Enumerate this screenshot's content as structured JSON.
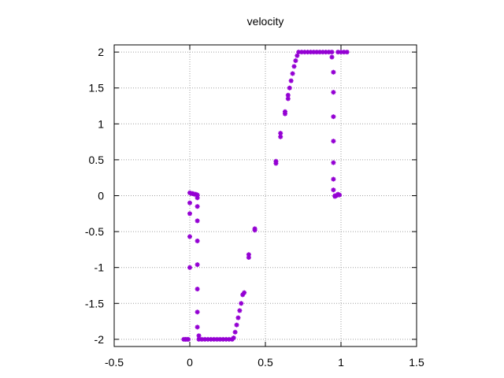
{
  "chart_data": {
    "type": "scatter",
    "title": "velocity",
    "xlabel": "",
    "ylabel": "",
    "xlim": [
      -0.5,
      1.5
    ],
    "ylim": [
      -2.1,
      2.1
    ],
    "x_ticks": [
      "-0.5",
      "0",
      "0.5",
      "1",
      "1.5"
    ],
    "y_ticks": [
      "2",
      "1.5",
      "1",
      "0.5",
      "0",
      "-0.5",
      "-1",
      "-1.5",
      "-2"
    ],
    "grid": true,
    "marker_color": "#9400D3",
    "series": [
      {
        "points": [
          [
            -0.04,
            -2.0
          ],
          [
            -0.03,
            -2.0
          ],
          [
            -0.02,
            -2.0
          ],
          [
            -0.01,
            -2.0
          ],
          [
            0.0,
            0.04
          ],
          [
            0.0,
            -0.1
          ],
          [
            0.0,
            -0.25
          ],
          [
            0.0,
            -0.57
          ],
          [
            0.0,
            -1.0
          ],
          [
            0.01,
            0.03
          ],
          [
            0.02,
            0.03
          ],
          [
            0.03,
            0.02
          ],
          [
            0.04,
            0.02
          ],
          [
            0.05,
            0.01
          ],
          [
            0.05,
            -0.03
          ],
          [
            0.05,
            -0.15
          ],
          [
            0.05,
            -0.35
          ],
          [
            0.05,
            -0.63
          ],
          [
            0.05,
            -0.96
          ],
          [
            0.05,
            -1.3
          ],
          [
            0.05,
            -1.62
          ],
          [
            0.05,
            -1.83
          ],
          [
            0.06,
            -1.95
          ],
          [
            0.06,
            -2.0
          ],
          [
            0.08,
            -2.0
          ],
          [
            0.1,
            -2.0
          ],
          [
            0.12,
            -2.0
          ],
          [
            0.14,
            -2.0
          ],
          [
            0.16,
            -2.0
          ],
          [
            0.18,
            -2.0
          ],
          [
            0.2,
            -2.0
          ],
          [
            0.22,
            -2.0
          ],
          [
            0.24,
            -2.0
          ],
          [
            0.26,
            -2.0
          ],
          [
            0.28,
            -2.0
          ],
          [
            0.29,
            -1.98
          ],
          [
            0.3,
            -1.9
          ],
          [
            0.31,
            -1.8
          ],
          [
            0.32,
            -1.7
          ],
          [
            0.33,
            -1.6
          ],
          [
            0.34,
            -1.5
          ],
          [
            0.35,
            -1.38
          ],
          [
            0.36,
            -1.35
          ],
          [
            0.39,
            -0.86
          ],
          [
            0.39,
            -0.82
          ],
          [
            0.43,
            -0.46
          ],
          [
            0.43,
            -0.48
          ],
          [
            0.57,
            0.45
          ],
          [
            0.57,
            0.48
          ],
          [
            0.6,
            0.82
          ],
          [
            0.6,
            0.87
          ],
          [
            0.63,
            1.14
          ],
          [
            0.63,
            1.17
          ],
          [
            0.65,
            1.35
          ],
          [
            0.65,
            1.4
          ],
          [
            0.66,
            1.5
          ],
          [
            0.67,
            1.6
          ],
          [
            0.68,
            1.7
          ],
          [
            0.69,
            1.8
          ],
          [
            0.7,
            1.88
          ],
          [
            0.71,
            1.95
          ],
          [
            0.72,
            2.0
          ],
          [
            0.74,
            2.0
          ],
          [
            0.76,
            2.0
          ],
          [
            0.78,
            2.0
          ],
          [
            0.8,
            2.0
          ],
          [
            0.82,
            2.0
          ],
          [
            0.84,
            2.0
          ],
          [
            0.86,
            2.0
          ],
          [
            0.88,
            2.0
          ],
          [
            0.9,
            2.0
          ],
          [
            0.92,
            2.0
          ],
          [
            0.94,
            2.0
          ],
          [
            0.94,
            1.93
          ],
          [
            0.95,
            1.72
          ],
          [
            0.95,
            1.44
          ],
          [
            0.95,
            1.1
          ],
          [
            0.95,
            0.76
          ],
          [
            0.95,
            0.46
          ],
          [
            0.95,
            0.23
          ],
          [
            0.95,
            0.08
          ],
          [
            0.96,
            -0.01
          ],
          [
            0.96,
            0.0
          ],
          [
            0.97,
            0.0
          ],
          [
            0.98,
            0.02
          ],
          [
            0.99,
            0.01
          ],
          [
            0.98,
            2.0
          ],
          [
            1.0,
            2.0
          ],
          [
            1.02,
            2.0
          ],
          [
            1.04,
            2.0
          ]
        ]
      }
    ]
  }
}
